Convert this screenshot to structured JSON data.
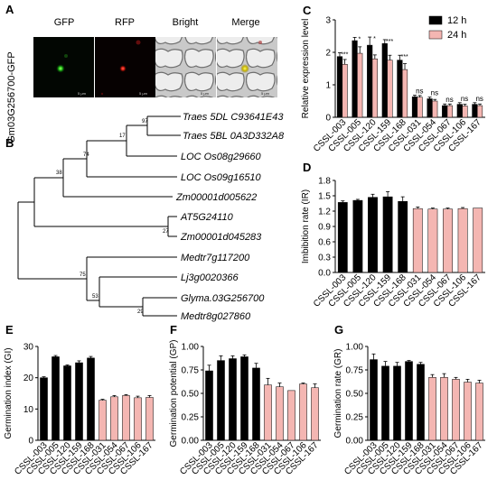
{
  "panel_labels": {
    "A": "A",
    "B": "B",
    "C": "C",
    "D": "D",
    "E": "E",
    "F": "F",
    "G": "G"
  },
  "microscopy": {
    "side_label": "Gm03G256700-GFP",
    "columns": [
      "GFP",
      "RFP",
      "Bright",
      "Merge"
    ],
    "scale_text": "5 μm"
  },
  "tree": {
    "taxa": [
      "Traes 5DL C93641E43",
      "Traes 5BL 0A3D332A8",
      "LOC Os08g29660",
      "LOC Os09g16510",
      "Zm00001d005622",
      "AT5G24110",
      "Zm00001d045283",
      "Medtr7g117200",
      "Lj3g0020366",
      "Glyma.03G256700",
      "Medtr8g027860"
    ],
    "bootstrap": [
      "97",
      "17",
      "74",
      "38",
      "27",
      "75",
      "53",
      "29"
    ]
  },
  "chart_data": [
    {
      "id": "C",
      "type": "bar",
      "title": "",
      "xlabel": "",
      "ylabel": "Relative expression level",
      "ylim": [
        0,
        3
      ],
      "yticks": [
        "0",
        "1",
        "2",
        "3"
      ],
      "categories": [
        "CSSL-003",
        "CSSL-005",
        "CSSL-120",
        "CSSL-159",
        "CSSL-168",
        "CSSL-031",
        "CSSL-054",
        "CSSL-067",
        "CSSL-106",
        "CSSL-167"
      ],
      "series": [
        {
          "name": "12 h",
          "color": "#000000",
          "values": [
            1.87,
            2.36,
            2.22,
            2.27,
            1.76,
            0.63,
            0.57,
            0.36,
            0.4,
            0.4
          ],
          "errors": [
            0.12,
            0.1,
            0.25,
            0.12,
            0.15,
            0.05,
            0.05,
            0.05,
            0.05,
            0.05
          ]
        },
        {
          "name": "24 h",
          "color": "#f4b6b2",
          "values": [
            1.63,
            1.97,
            1.8,
            1.76,
            1.47,
            0.62,
            0.5,
            0.36,
            0.35,
            0.36
          ],
          "errors": [
            0.15,
            0.2,
            0.12,
            0.15,
            0.18,
            0.05,
            0.05,
            0.05,
            0.05,
            0.05
          ]
        }
      ],
      "annotations": [
        "***",
        "*",
        "*",
        "***",
        "***",
        "ns",
        "ns",
        "ns",
        "ns",
        "ns"
      ],
      "legend": "top-right"
    },
    {
      "id": "D",
      "type": "bar",
      "ylabel": "Imbibition rate (IR)",
      "ylim": [
        0,
        1.8
      ],
      "yticks": [
        "0.0",
        "0.3",
        "0.6",
        "0.9",
        "1.2",
        "1.5",
        "1.8"
      ],
      "categories": [
        "CSSL-003",
        "CSSL-005",
        "CSSL-120",
        "CSSL-159",
        "CSSL-168",
        "CSSL-031",
        "CSSL-054",
        "CSSL-067",
        "CSSL-106",
        "CSSL-167"
      ],
      "values": [
        1.37,
        1.41,
        1.47,
        1.48,
        1.39,
        1.25,
        1.24,
        1.24,
        1.25,
        1.26
      ],
      "errors": [
        0.03,
        0.02,
        0.06,
        0.1,
        0.09,
        0.03,
        0.02,
        0.02,
        0.02,
        0.0
      ],
      "colors": [
        "#000000",
        "#000000",
        "#000000",
        "#000000",
        "#000000",
        "#f4b6b2",
        "#f4b6b2",
        "#f4b6b2",
        "#f4b6b2",
        "#f4b6b2"
      ]
    },
    {
      "id": "E",
      "type": "bar",
      "ylabel": "Germination index (GI)",
      "ylim": [
        0,
        30
      ],
      "yticks": [
        "0",
        "10",
        "20",
        "30"
      ],
      "categories": [
        "CSSL-003",
        "CSSL-005",
        "CSSL-120",
        "CSSL-159",
        "CSSL-168",
        "CSSL-031",
        "CSSL-054",
        "CSSL-067",
        "CSSL-106",
        "CSSL-167"
      ],
      "values": [
        20.0,
        26.7,
        23.8,
        24.8,
        26.3,
        12.8,
        13.9,
        14.3,
        13.6,
        13.7
      ],
      "errors": [
        0.3,
        0.4,
        0.3,
        0.6,
        0.5,
        0.3,
        0.4,
        0.3,
        0.5,
        0.6
      ],
      "colors": [
        "#000000",
        "#000000",
        "#000000",
        "#000000",
        "#000000",
        "#f4b6b2",
        "#f4b6b2",
        "#f4b6b2",
        "#f4b6b2",
        "#f4b6b2"
      ]
    },
    {
      "id": "F",
      "type": "bar",
      "ylabel": "Germination potential (GP)",
      "ylim": [
        0,
        1.0
      ],
      "yticks": [
        "0.00",
        "0.25",
        "0.50",
        "0.75",
        "1.00"
      ],
      "categories": [
        "CSSL-003",
        "CSSL-005",
        "CSSL-120",
        "CSSL-159",
        "CSSL-168",
        "CSSL-031",
        "CSSL-054",
        "CSSL-067",
        "CSSL-106",
        "CSSL-167"
      ],
      "values": [
        0.74,
        0.85,
        0.87,
        0.89,
        0.77,
        0.59,
        0.57,
        0.53,
        0.6,
        0.56
      ],
      "errors": [
        0.06,
        0.05,
        0.03,
        0.02,
        0.05,
        0.07,
        0.04,
        0.0,
        0.01,
        0.04
      ],
      "colors": [
        "#000000",
        "#000000",
        "#000000",
        "#000000",
        "#000000",
        "#f4b6b2",
        "#f4b6b2",
        "#f4b6b2",
        "#f4b6b2",
        "#f4b6b2"
      ]
    },
    {
      "id": "G",
      "type": "bar",
      "ylabel": "Germination rate (GR)",
      "ylim": [
        0,
        1.0
      ],
      "yticks": [
        "0.00",
        "0.25",
        "0.50",
        "0.75",
        "1.00"
      ],
      "categories": [
        "CSSL-003",
        "CSSL-005",
        "CSSL-120",
        "CSSL-159",
        "CSSL-168",
        "CSSL-031",
        "CSSL-054",
        "CSSL-067",
        "CSSL-106",
        "CSSL-167"
      ],
      "values": [
        0.86,
        0.79,
        0.79,
        0.84,
        0.81,
        0.67,
        0.67,
        0.65,
        0.62,
        0.61
      ],
      "errors": [
        0.06,
        0.05,
        0.04,
        0.01,
        0.02,
        0.03,
        0.04,
        0.02,
        0.03,
        0.03
      ],
      "colors": [
        "#000000",
        "#000000",
        "#000000",
        "#000000",
        "#000000",
        "#f4b6b2",
        "#f4b6b2",
        "#f4b6b2",
        "#f4b6b2",
        "#f4b6b2"
      ]
    }
  ]
}
